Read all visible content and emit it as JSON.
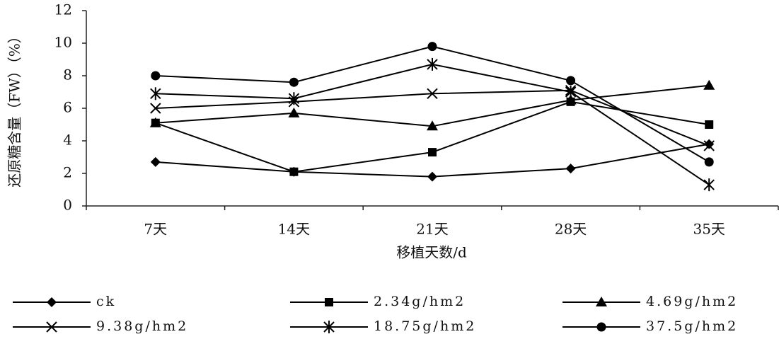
{
  "chart_data": {
    "type": "line",
    "y_label": "还原糖含量（FW）（%）",
    "x_label": "移植天数/d",
    "categories": [
      "7天",
      "14天",
      "21天",
      "28天",
      "35天"
    ],
    "ylim": [
      0,
      12
    ],
    "yticks": [
      0,
      2,
      4,
      6,
      8,
      10,
      12
    ],
    "series": [
      {
        "name": "ck",
        "color": "#000000",
        "marker": "diamond",
        "values": [
          2.7,
          2.1,
          1.8,
          2.3,
          3.8
        ]
      },
      {
        "name": "2.34g/hm2",
        "color": "#000000",
        "marker": "square",
        "values": [
          5.1,
          2.1,
          3.3,
          6.4,
          5.0
        ]
      },
      {
        "name": "4.69g/hm2",
        "color": "#000000",
        "marker": "triangle",
        "values": [
          5.1,
          5.7,
          4.9,
          6.5,
          7.4
        ]
      },
      {
        "name": "9.38g/hm2",
        "color": "#000000",
        "marker": "x",
        "values": [
          6.0,
          6.4,
          6.9,
          7.1,
          3.7
        ]
      },
      {
        "name": "18.75g/hm2",
        "color": "#000000",
        "marker": "asterisk",
        "values": [
          6.9,
          6.6,
          8.7,
          7.0,
          1.3
        ]
      },
      {
        "name": "37.5g/hm2",
        "color": "#000000",
        "marker": "circle",
        "values": [
          8.0,
          7.6,
          9.8,
          7.7,
          2.7
        ]
      }
    ]
  }
}
